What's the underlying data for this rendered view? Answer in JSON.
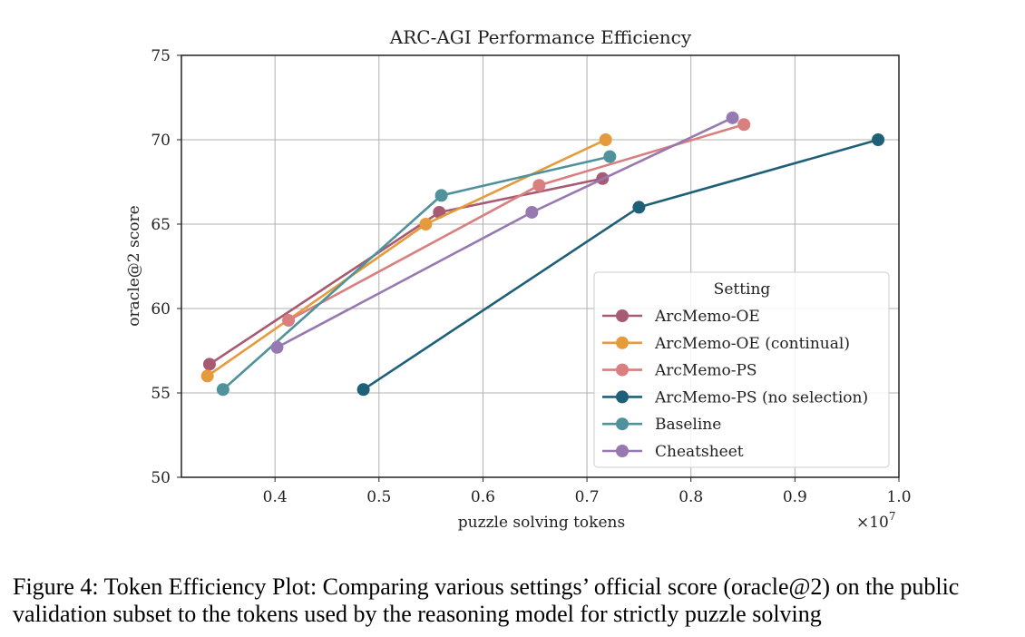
{
  "chart_data": {
    "type": "line",
    "title": "ARC-AGI Performance Efficiency",
    "xlabel": "puzzle solving tokens",
    "ylabel": "oracle@2 score",
    "x_scale_label": "×10",
    "x_scale_exponent": "7",
    "xlim": [
      0.31,
      1.0
    ],
    "ylim": [
      50,
      75
    ],
    "xticks": [
      "0.4",
      "0.5",
      "0.6",
      "0.7",
      "0.8",
      "0.9",
      "1.0"
    ],
    "yticks": [
      "50",
      "55",
      "60",
      "65",
      "70",
      "75"
    ],
    "grid": true,
    "legend_title": "Setting",
    "legend_position": "lower-right",
    "series": [
      {
        "name": "ArcMemo-OE",
        "color": "#a85a72",
        "x": [
          0.337,
          0.558,
          0.715
        ],
        "y": [
          56.7,
          65.7,
          67.7
        ]
      },
      {
        "name": "ArcMemo-OE (continual)",
        "color": "#e59a3b",
        "x": [
          0.335,
          0.545,
          0.718
        ],
        "y": [
          56.0,
          65.0,
          70.0
        ]
      },
      {
        "name": "ArcMemo-PS",
        "color": "#d97f7f",
        "x": [
          0.413,
          0.654,
          0.851
        ],
        "y": [
          59.3,
          67.3,
          70.9
        ]
      },
      {
        "name": "ArcMemo-PS (no selection)",
        "color": "#1f6079",
        "x": [
          0.485,
          0.75,
          0.98
        ],
        "y": [
          55.2,
          66.0,
          70.0
        ]
      },
      {
        "name": "Baseline",
        "color": "#4f929c",
        "x": [
          0.35,
          0.56,
          0.722
        ],
        "y": [
          55.2,
          66.7,
          69.0
        ]
      },
      {
        "name": "Cheatsheet",
        "color": "#9679b0",
        "x": [
          0.402,
          0.647,
          0.84
        ],
        "y": [
          57.7,
          65.7,
          71.3
        ]
      }
    ]
  },
  "caption": {
    "line1": "Figure 4: Token Efficiency Plot: Comparing various settings’ official score (oracle@2) on the public",
    "line2": "validation subset to the tokens used by the reasoning model for strictly puzzle solving"
  }
}
